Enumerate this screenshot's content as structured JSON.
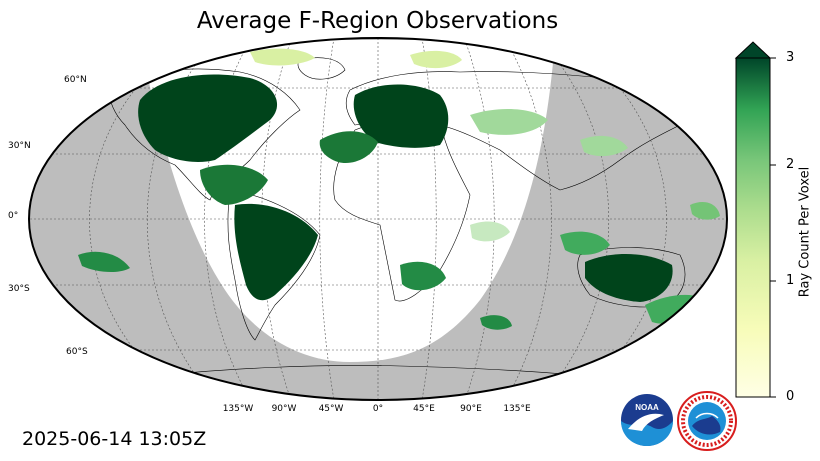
{
  "title": "Average F-Region Observations",
  "timestamp": "2025-06-14 13:05Z",
  "colors": {
    "night_shade": "#bdbdbd",
    "day": "#ffffff",
    "scale_low": "#ffffe5",
    "scale_mid": "#78c679",
    "scale_high": "#004529"
  },
  "map": {
    "projection": "Robinson",
    "lat_labels": [
      "60°N",
      "30°N",
      "0°",
      "30°S",
      "60°S"
    ],
    "lon_labels": [
      "135°W",
      "90°W",
      "45°W",
      "0°",
      "45°E",
      "90°E",
      "135°E"
    ],
    "gridlines": true
  },
  "colorbar": {
    "label": "Ray Count Per Voxel",
    "ticks": [
      "0",
      "1",
      "2",
      "3"
    ],
    "range": [
      0,
      3
    ],
    "extend": "max"
  },
  "logos": {
    "noaa": "NOAA",
    "nws": "NATIONAL WEATHER SERVICE"
  }
}
